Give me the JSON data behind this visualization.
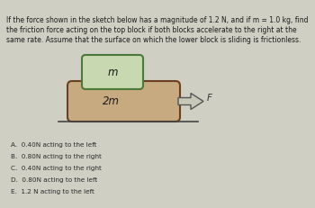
{
  "title_lines": [
    "If the force shown in the sketch below has a magnitude of 1.2 N, and if m = 1.0 kg, find",
    "the friction force acting on the top block if both blocks accelerate to the right at the",
    "same rate. Assume that the surface on which the lower block is sliding is frictionless."
  ],
  "top_block_label": "m",
  "bottom_block_label": "2m",
  "force_label": "F",
  "choices": [
    "A.  0.40N acting to the left",
    "B.  0.80N acting to the right",
    "C.  0.40N acting to the right",
    "D.  0.80N acting to the left",
    "E.  1.2 N acting to the left"
  ],
  "bg_color": "#d0cfc4",
  "top_block_face": "#c8d8b0",
  "top_block_edge": "#4a7a3a",
  "bot_block_face": "#c8aa80",
  "bot_block_edge": "#6a4020",
  "ground_line_color": "#444444",
  "text_color": "#1a1a1a",
  "choice_color": "#2a2a2a",
  "arrow_fill": "#c8c8b8",
  "arrow_edge": "#555555",
  "force_label_color": "#333333",
  "title_font_size": 5.5,
  "choice_font_size": 5.2,
  "block_font_size": 8.5
}
